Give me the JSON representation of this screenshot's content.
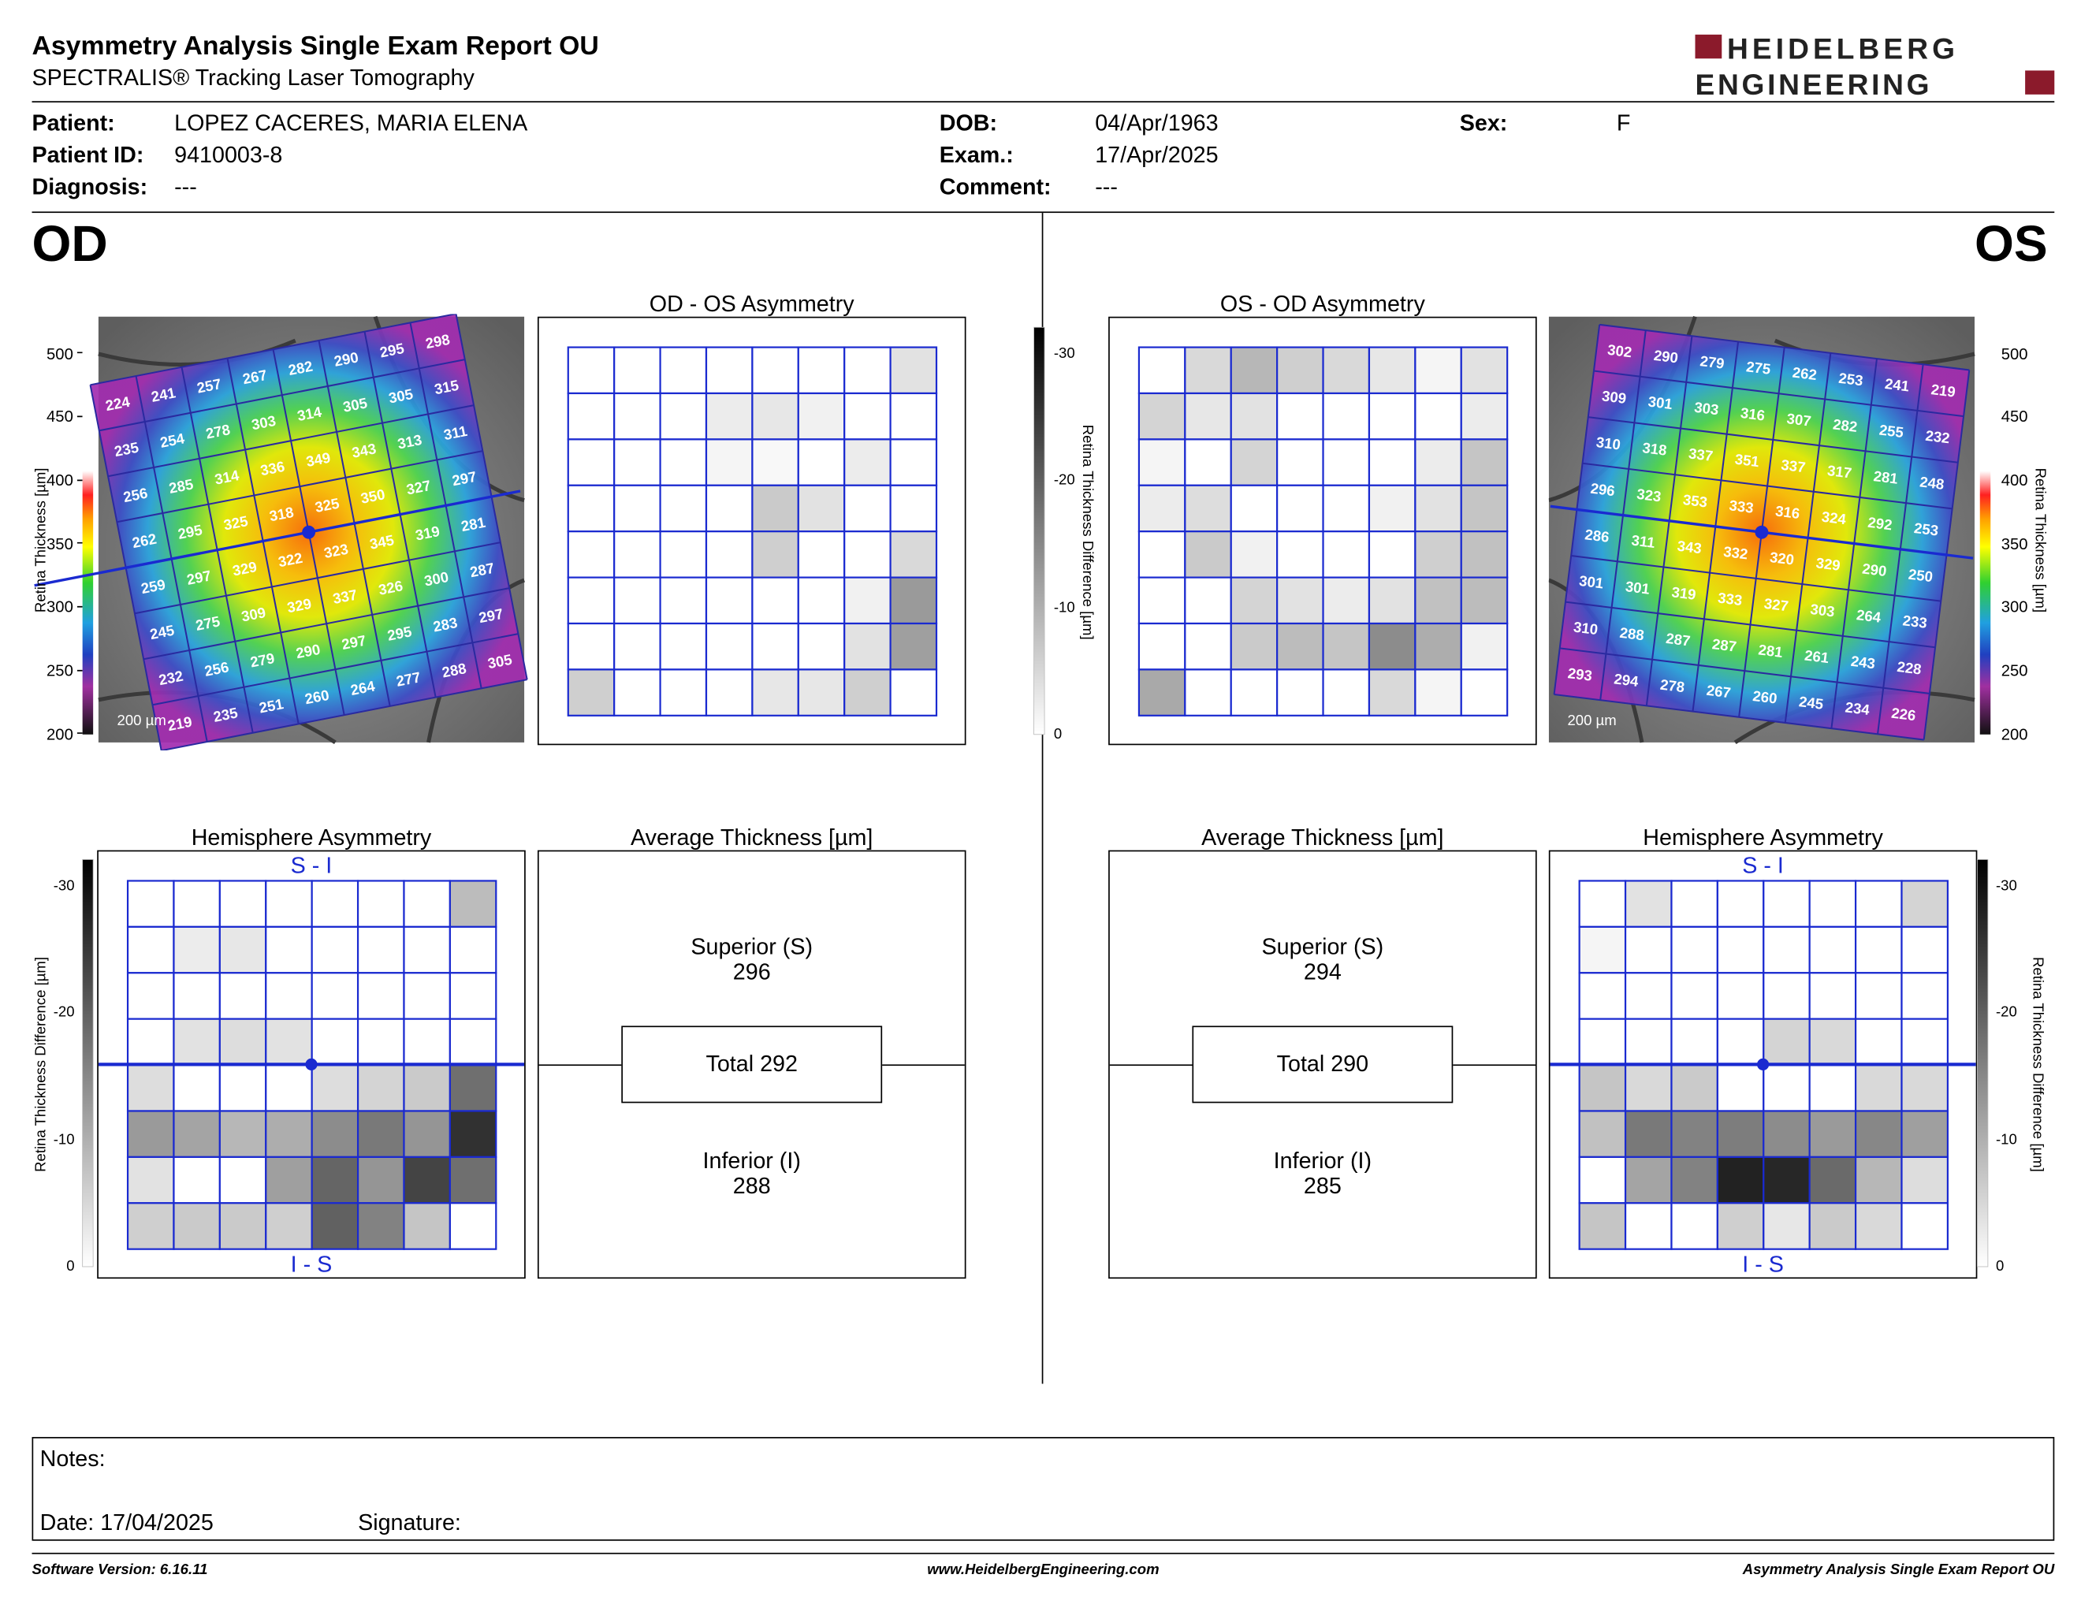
{
  "header": {
    "title": "Asymmetry Analysis Single Exam Report OU",
    "subtitle": "SPECTRALIS® Tracking Laser Tomography",
    "logo_line1": "HEIDELBERG",
    "logo_line2": "ENGINEERING",
    "brand_color": "#8b1a2b"
  },
  "patient": {
    "patient_label": "Patient:",
    "patient_value": "LOPEZ CACERES, MARIA ELENA",
    "id_label": "Patient ID:",
    "id_value": "9410003-8",
    "diagnosis_label": "Diagnosis:",
    "diagnosis_value": "---",
    "dob_label": "DOB:",
    "dob_value": "04/Apr/1963",
    "exam_label": "Exam.:",
    "exam_value": "17/Apr/2025",
    "comment_label": "Comment:",
    "comment_value": "---",
    "sex_label": "Sex:",
    "sex_value": "F"
  },
  "od": {
    "eye_label": "OD",
    "asym_title": "OD - OS Asymmetry",
    "hemi_title": "Hemisphere Asymmetry",
    "hemi_top": "S - I",
    "hemi_bottom": "I - S",
    "avg_title": "Average Thickness [µm]",
    "superior_label": "Superior (S)",
    "superior_value": "296",
    "total_label": "Total 292",
    "inferior_label": "Inferior (I)",
    "inferior_value": "288",
    "scale_bar": "200 µm",
    "thickness": [
      [
        224,
        241,
        257,
        267,
        282,
        290,
        295,
        298
      ],
      [
        235,
        254,
        278,
        303,
        314,
        305,
        305,
        315
      ],
      [
        256,
        285,
        314,
        336,
        349,
        343,
        313,
        311
      ],
      [
        262,
        295,
        325,
        318,
        325,
        350,
        327,
        297
      ],
      [
        259,
        297,
        329,
        322,
        323,
        345,
        319,
        281
      ],
      [
        245,
        275,
        309,
        329,
        337,
        326,
        300,
        287
      ],
      [
        232,
        256,
        279,
        290,
        297,
        295,
        283,
        297
      ],
      [
        219,
        235,
        251,
        260,
        264,
        277,
        288,
        305
      ]
    ],
    "asym_shade": [
      [
        0,
        0,
        0,
        0,
        0,
        0,
        0,
        12
      ],
      [
        0,
        0,
        0,
        8,
        10,
        6,
        0,
        0
      ],
      [
        0,
        0,
        0,
        4,
        3,
        0,
        8,
        0
      ],
      [
        0,
        0,
        0,
        0,
        22,
        12,
        0,
        0
      ],
      [
        0,
        0,
        0,
        0,
        20,
        0,
        0,
        16
      ],
      [
        0,
        0,
        0,
        0,
        0,
        0,
        6,
        42
      ],
      [
        0,
        0,
        0,
        0,
        0,
        0,
        12,
        40
      ],
      [
        20,
        0,
        0,
        0,
        10,
        10,
        20,
        0
      ]
    ],
    "hemi_shade": [
      [
        0,
        0,
        0,
        0,
        0,
        0,
        0,
        28
      ],
      [
        0,
        8,
        10,
        0,
        0,
        0,
        0,
        0
      ],
      [
        0,
        0,
        0,
        0,
        0,
        0,
        0,
        0
      ],
      [
        0,
        12,
        14,
        12,
        0,
        0,
        0,
        0
      ],
      [
        14,
        0,
        0,
        0,
        14,
        18,
        22,
        60
      ],
      [
        42,
        38,
        30,
        34,
        48,
        56,
        44,
        86
      ],
      [
        12,
        0,
        0,
        40,
        64,
        44,
        78,
        60
      ],
      [
        20,
        22,
        22,
        20,
        66,
        52,
        24,
        0
      ]
    ]
  },
  "os": {
    "eye_label": "OS",
    "asym_title": "OS - OD Asymmetry",
    "hemi_title": "Hemisphere Asymmetry",
    "hemi_top": "S - I",
    "hemi_bottom": "I - S",
    "avg_title": "Average Thickness [µm]",
    "superior_label": "Superior (S)",
    "superior_value": "294",
    "total_label": "Total 290",
    "inferior_label": "Inferior (I)",
    "inferior_value": "285",
    "scale_bar": "200 µm",
    "thickness": [
      [
        302,
        290,
        279,
        275,
        262,
        253,
        241,
        219
      ],
      [
        309,
        301,
        303,
        316,
        307,
        282,
        255,
        232
      ],
      [
        310,
        318,
        337,
        351,
        337,
        317,
        281,
        248
      ],
      [
        296,
        323,
        353,
        333,
        316,
        324,
        292,
        253
      ],
      [
        286,
        311,
        343,
        332,
        320,
        329,
        290,
        250
      ],
      [
        301,
        301,
        319,
        333,
        327,
        303,
        264,
        233
      ],
      [
        310,
        288,
        287,
        287,
        281,
        261,
        243,
        228
      ],
      [
        293,
        294,
        278,
        267,
        260,
        245,
        234,
        226
      ]
    ],
    "asym_shade": [
      [
        0,
        16,
        30,
        20,
        16,
        10,
        4,
        12
      ],
      [
        18,
        10,
        12,
        0,
        0,
        0,
        0,
        8
      ],
      [
        4,
        0,
        18,
        0,
        0,
        0,
        8,
        24
      ],
      [
        8,
        14,
        0,
        0,
        0,
        6,
        12,
        24
      ],
      [
        0,
        22,
        6,
        0,
        0,
        0,
        20,
        26
      ],
      [
        0,
        0,
        18,
        12,
        8,
        12,
        26,
        28
      ],
      [
        0,
        0,
        22,
        28,
        24,
        48,
        34,
        6
      ],
      [
        36,
        0,
        0,
        0,
        0,
        16,
        4,
        0
      ]
    ],
    "hemi_shade": [
      [
        0,
        12,
        0,
        0,
        0,
        0,
        0,
        18
      ],
      [
        4,
        0,
        0,
        0,
        0,
        0,
        0,
        0
      ],
      [
        0,
        0,
        0,
        0,
        0,
        0,
        0,
        0
      ],
      [
        0,
        0,
        0,
        0,
        18,
        16,
        0,
        0
      ],
      [
        24,
        16,
        22,
        0,
        0,
        0,
        16,
        16
      ],
      [
        26,
        56,
        52,
        54,
        48,
        42,
        50,
        40
      ],
      [
        0,
        38,
        52,
        92,
        90,
        62,
        30,
        14
      ],
      [
        24,
        0,
        0,
        20,
        10,
        22,
        16,
        0
      ]
    ]
  },
  "colorbar": {
    "thickness_label": "Retina  Thickness [µm]",
    "thickness_ticks": [
      "500",
      "450",
      "400",
      "350",
      "300",
      "250",
      "200"
    ],
    "diff_label": "Retina Thickness Difference [µm]",
    "diff_ticks": [
      "-30",
      "-20",
      "-10",
      "0"
    ]
  },
  "notes": {
    "notes_label": "Notes:",
    "date_label": "Date: 17/04/2025",
    "signature_label": "Signature:"
  },
  "footer": {
    "software": "Software Version: 6.16.11",
    "website": "www.HeidelbergEngineering.com",
    "report_name": "Asymmetry Analysis Single Exam Report OU"
  }
}
